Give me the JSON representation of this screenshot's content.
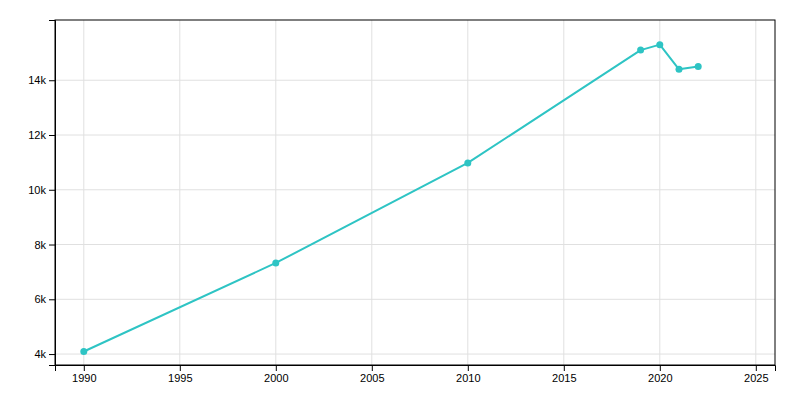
{
  "chart_data": {
    "type": "line",
    "x": [
      1990,
      2000,
      2010,
      2019,
      2020,
      2021,
      2022
    ],
    "values": [
      4093,
      7327,
      10980,
      15100,
      15300,
      14400,
      14500
    ],
    "color": "#2EC4C4",
    "marker": "circle",
    "xlim": [
      1988.5,
      2026
    ],
    "ylim": [
      3600,
      16200
    ],
    "xticks": [
      1990,
      1995,
      2000,
      2005,
      2010,
      2015,
      2020,
      2025
    ],
    "yticks": [
      {
        "value": 4000,
        "label": "4k"
      },
      {
        "value": 6000,
        "label": "6k"
      },
      {
        "value": 8000,
        "label": "8k"
      },
      {
        "value": 10000,
        "label": "10k"
      },
      {
        "value": 12000,
        "label": "12k"
      },
      {
        "value": 14000,
        "label": "14k"
      }
    ],
    "grid": true
  }
}
